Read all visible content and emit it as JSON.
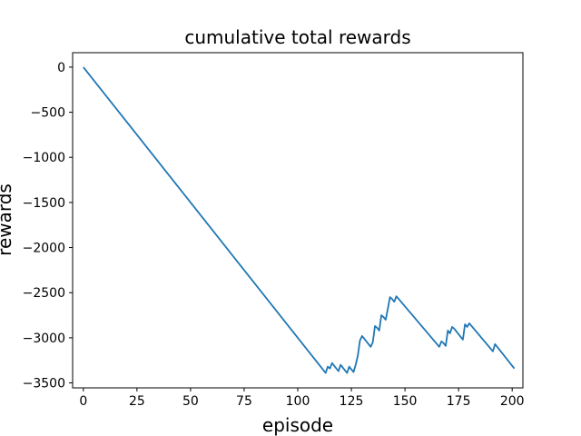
{
  "chart_data": {
    "type": "line",
    "title": "cumulative total rewards",
    "xlabel": "episode",
    "ylabel": "rewards",
    "xlim": [
      -5,
      205
    ],
    "ylim": [
      -3555,
      160
    ],
    "xticks": [
      0,
      25,
      50,
      75,
      100,
      125,
      150,
      175,
      200
    ],
    "xtick_labels": [
      "0",
      "25",
      "50",
      "75",
      "100",
      "125",
      "150",
      "175",
      "200"
    ],
    "yticks": [
      0,
      -500,
      -1000,
      -1500,
      -2000,
      -2500,
      -3000,
      -3500
    ],
    "ytick_labels": [
      "0",
      "−500",
      "−1000",
      "−1500",
      "−2000",
      "−2500",
      "−3000",
      "−3500"
    ],
    "grid": false,
    "series": [
      {
        "color": "#1f77b4",
        "x": [
          0,
          113,
          114,
          115,
          116,
          117,
          118,
          119,
          120,
          121,
          122,
          123,
          124,
          125,
          126,
          127,
          128,
          129,
          130,
          131,
          132,
          133,
          134,
          135,
          136,
          137,
          138,
          139,
          140,
          141,
          142,
          143,
          144,
          145,
          146,
          166,
          167,
          168,
          169,
          170,
          171,
          172,
          173,
          174,
          175,
          176,
          177,
          178,
          179,
          180,
          191,
          192,
          201
        ],
        "y": [
          0,
          -3390,
          -3320,
          -3340,
          -3280,
          -3310,
          -3340,
          -3370,
          -3300,
          -3330,
          -3360,
          -3390,
          -3320,
          -3350,
          -3380,
          -3300,
          -3200,
          -3030,
          -2980,
          -3010,
          -3040,
          -3070,
          -3100,
          -3050,
          -2870,
          -2890,
          -2920,
          -2750,
          -2770,
          -2800,
          -2680,
          -2550,
          -2570,
          -2600,
          -2540,
          -3100,
          -3040,
          -3060,
          -3090,
          -2920,
          -2950,
          -2880,
          -2900,
          -2930,
          -2960,
          -2990,
          -3020,
          -2850,
          -2880,
          -2840,
          -3150,
          -3070,
          -3340
        ]
      }
    ]
  }
}
